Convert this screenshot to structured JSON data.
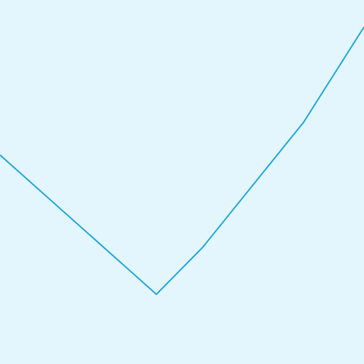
{
  "colors": {
    "background": "#e3f5fd",
    "line": "#1ea6d8"
  },
  "icons": {
    "line": "polyline-shape"
  }
}
